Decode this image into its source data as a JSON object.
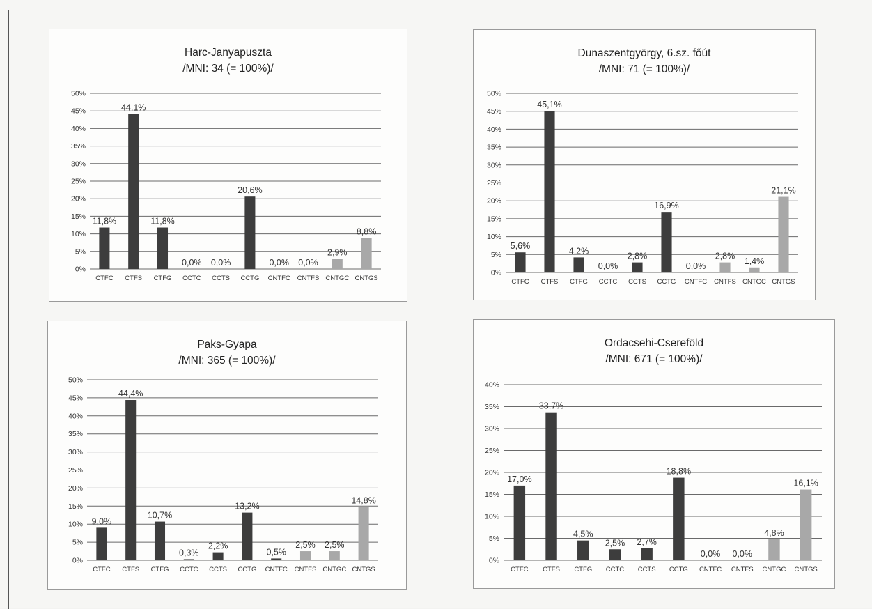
{
  "chart_data": [
    {
      "type": "bar",
      "title": "Harc-Janyapuszta",
      "subtitle": "/MNI: 34  (= 100%)/",
      "categories": [
        "CTFC",
        "CTFS",
        "CTFG",
        "CCTC",
        "CCTS",
        "CCTG",
        "CNTFC",
        "CNTFS",
        "CNTGC",
        "CNTGS"
      ],
      "values": [
        11.8,
        44.1,
        11.8,
        0.0,
        0.0,
        20.6,
        0.0,
        0.0,
        2.9,
        8.8
      ],
      "value_labels": [
        "11,8%",
        "44,1%",
        "11,8%",
        "0,0%",
        "0,0%",
        "20,6%",
        "0,0%",
        "0,0%",
        "2,9%",
        "8,8%"
      ],
      "ylim": [
        0,
        50
      ],
      "yticks": [
        "0%",
        "5%",
        "10%",
        "15%",
        "20%",
        "25%",
        "30%",
        "35%",
        "40%",
        "45%",
        "50%"
      ],
      "grid": true
    },
    {
      "type": "bar",
      "title": "Dunaszentgyörgy, 6.sz. főút",
      "subtitle": "/MNI: 71 (= 100%)/",
      "categories": [
        "CTFC",
        "CTFS",
        "CTFG",
        "CCTC",
        "CCTS",
        "CCTG",
        "CNTFC",
        "CNTFS",
        "CNTGC",
        "CNTGS"
      ],
      "values": [
        5.6,
        45.1,
        4.2,
        0.0,
        2.8,
        16.9,
        0.0,
        2.8,
        1.4,
        21.1
      ],
      "value_labels": [
        "5,6%",
        "45,1%",
        "4,2%",
        "0,0%",
        "2,8%",
        "16,9%",
        "0,0%",
        "2,8%",
        "1,4%",
        "21,1%"
      ],
      "ylim": [
        0,
        50
      ],
      "yticks": [
        "0%",
        "5%",
        "10%",
        "15%",
        "20%",
        "25%",
        "30%",
        "35%",
        "40%",
        "45%",
        "50%"
      ],
      "grid": true
    },
    {
      "type": "bar",
      "title": "Paks-Gyapa",
      "subtitle": "/MNI: 365 (= 100%)/",
      "categories": [
        "CTFC",
        "CTFS",
        "CTFG",
        "CCTC",
        "CCTS",
        "CCTG",
        "CNTFC",
        "CNTFS",
        "CNTGC",
        "CNTGS"
      ],
      "values": [
        9.0,
        44.4,
        10.7,
        0.3,
        2.2,
        13.2,
        0.5,
        2.5,
        2.5,
        14.8
      ],
      "value_labels": [
        "9,0%",
        "44,4%",
        "10,7%",
        "0,3%",
        "2,2%",
        "13,2%",
        "0,5%",
        "2,5%",
        "2,5%",
        "14,8%"
      ],
      "ylim": [
        0,
        50
      ],
      "yticks": [
        "0%",
        "5%",
        "10%",
        "15%",
        "20%",
        "25%",
        "30%",
        "35%",
        "40%",
        "45%",
        "50%"
      ],
      "grid": true
    },
    {
      "type": "bar",
      "title": "Ordacsehi-Csereföld",
      "subtitle": "/MNI: 671 (= 100%)/",
      "categories": [
        "CTFC",
        "CTFS",
        "CTFG",
        "CCTC",
        "CCTS",
        "CCTG",
        "CNTFC",
        "CNTFS",
        "CNTGC",
        "CNTGS"
      ],
      "values": [
        17.0,
        33.7,
        4.5,
        2.5,
        2.7,
        18.8,
        0.0,
        0.0,
        4.8,
        16.1
      ],
      "value_labels": [
        "17,0%",
        "33,7%",
        "4,5%",
        "2,5%",
        "2,7%",
        "18,8%",
        "0,0%",
        "0,0%",
        "4,8%",
        "16,1%"
      ],
      "ylim": [
        0,
        40
      ],
      "yticks": [
        "0%",
        "5%",
        "10%",
        "15%",
        "20%",
        "25%",
        "30%",
        "35%",
        "40%"
      ],
      "grid": true
    }
  ],
  "colors": {
    "dark_bar": "#3d3d3d",
    "light_bar": "#a8a8a8",
    "gridline": "#6a6a6a",
    "axis_text": "#333333"
  }
}
